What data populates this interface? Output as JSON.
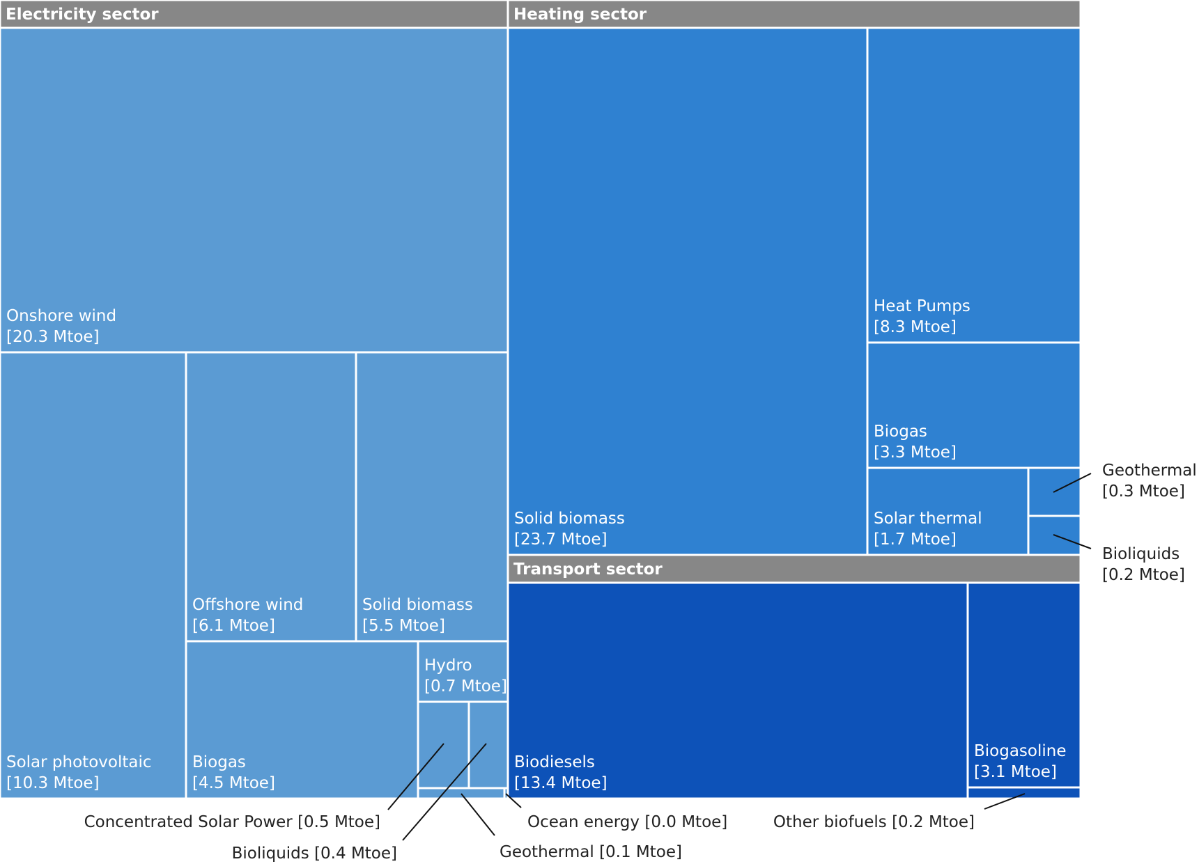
{
  "chart_data": {
    "type": "treemap",
    "unit": "Mtoe",
    "colors": {
      "header": "#878787",
      "electricity": "#5b9bd3",
      "heating": "#2f81d1",
      "transport": "#0d52b8",
      "border": "#ffffff",
      "callout_text": "#222222"
    },
    "sectors": [
      {
        "id": "electricity",
        "name": "Electricity sector",
        "items": [
          {
            "id": "onshore-wind",
            "name": "Onshore wind",
            "value": 20.3,
            "value_label": "[20.3 Mtoe]"
          },
          {
            "id": "solar-pv",
            "name": "Solar photovoltaic",
            "value": 10.3,
            "value_label": "[10.3 Mtoe]"
          },
          {
            "id": "offshore-wind",
            "name": "Offshore wind",
            "value": 6.1,
            "value_label": "[6.1 Mtoe]"
          },
          {
            "id": "solid-biomass",
            "name": "Solid biomass",
            "value": 5.5,
            "value_label": "[5.5 Mtoe]"
          },
          {
            "id": "biogas",
            "name": "Biogas",
            "value": 4.5,
            "value_label": "[4.5 Mtoe]"
          },
          {
            "id": "hydro",
            "name": "Hydro",
            "value": 0.7,
            "value_label": "[0.7 Mtoe]"
          },
          {
            "id": "csp",
            "name": "Concentrated Solar Power",
            "value": 0.5,
            "value_label": "[0.5 Mtoe]"
          },
          {
            "id": "bioliquids",
            "name": "Bioliquids",
            "value": 0.4,
            "value_label": "[0.4 Mtoe]"
          },
          {
            "id": "geothermal",
            "name": "Geothermal",
            "value": 0.1,
            "value_label": "[0.1 Mtoe]"
          },
          {
            "id": "ocean-energy",
            "name": "Ocean energy",
            "value": 0.0,
            "value_label": "[0.0 Mtoe]"
          }
        ]
      },
      {
        "id": "heating",
        "name": "Heating sector",
        "items": [
          {
            "id": "solid-biomass",
            "name": "Solid biomass",
            "value": 23.7,
            "value_label": "[23.7 Mtoe]"
          },
          {
            "id": "heat-pumps",
            "name": "Heat Pumps",
            "value": 8.3,
            "value_label": "[8.3 Mtoe]"
          },
          {
            "id": "biogas",
            "name": "Biogas",
            "value": 3.3,
            "value_label": "[3.3 Mtoe]"
          },
          {
            "id": "solar-thermal",
            "name": "Solar thermal",
            "value": 1.7,
            "value_label": "[1.7 Mtoe]"
          },
          {
            "id": "geothermal",
            "name": "Geothermal",
            "value": 0.3,
            "value_label": "[0.3 Mtoe]"
          },
          {
            "id": "bioliquids",
            "name": "Bioliquids",
            "value": 0.2,
            "value_label": "[0.2 Mtoe]"
          }
        ]
      },
      {
        "id": "transport",
        "name": "Transport sector",
        "items": [
          {
            "id": "biodiesels",
            "name": "Biodiesels",
            "value": 13.4,
            "value_label": "[13.4 Mtoe]"
          },
          {
            "id": "biogasoline",
            "name": "Biogasoline",
            "value": 3.1,
            "value_label": "[3.1 Mtoe]"
          },
          {
            "id": "other-biofuels",
            "name": "Other biofuels",
            "value": 0.2,
            "value_label": "[0.2 Mtoe]"
          }
        ]
      }
    ]
  }
}
